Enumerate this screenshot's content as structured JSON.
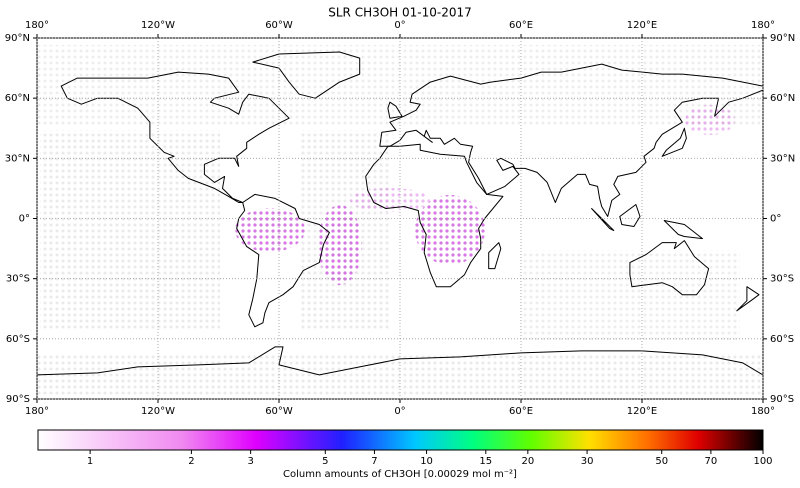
{
  "chart_data": {
    "type": "map",
    "title": "SLR CH3OH 01-10-2017",
    "xlim": [
      -180,
      180
    ],
    "ylim": [
      -90,
      90
    ],
    "xticks": [
      {
        "value": -180,
        "label": "180°"
      },
      {
        "value": -120,
        "label": "120°W"
      },
      {
        "value": -60,
        "label": "60°W"
      },
      {
        "value": 0,
        "label": "0°"
      },
      {
        "value": 60,
        "label": "60°E"
      },
      {
        "value": 120,
        "label": "120°E"
      },
      {
        "value": 180,
        "label": "180°"
      }
    ],
    "yticks": [
      {
        "value": 90,
        "label": "90°N"
      },
      {
        "value": 60,
        "label": "60°N"
      },
      {
        "value": 30,
        "label": "30°N"
      },
      {
        "value": 0,
        "label": "0°"
      },
      {
        "value": -30,
        "label": "30°S"
      },
      {
        "value": -60,
        "label": "60°S"
      },
      {
        "value": -90,
        "label": "90°S"
      }
    ],
    "grid": true,
    "colorbar": {
      "label": "Column amounts of CH3OH [0.00029 mol m⁻²]",
      "log": true,
      "lim": [
        0.7,
        100
      ],
      "ticks": [
        1,
        2,
        3,
        5,
        7,
        10,
        15,
        20,
        30,
        50,
        70,
        100
      ]
    }
  }
}
